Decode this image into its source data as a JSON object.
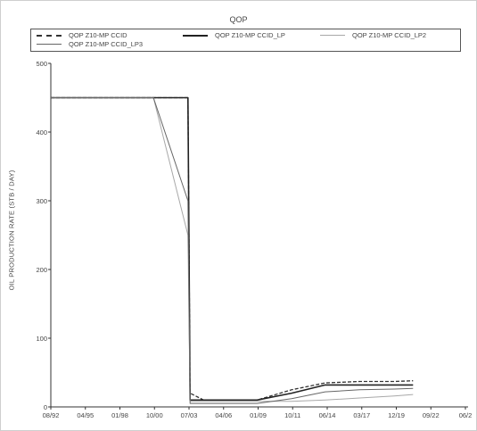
{
  "chart_data": {
    "type": "line",
    "title": "QOP",
    "xlabel": "",
    "ylabel": "OIL PRODUCTION RATE (STB / DAY)",
    "x_tick_labels": [
      "08/92",
      "04/95",
      "01/98",
      "10/00",
      "07/03",
      "04/06",
      "01/09",
      "10/11",
      "06/14",
      "03/17",
      "12/19",
      "09/22",
      "06/2"
    ],
    "y_ticks": [
      0,
      100,
      200,
      300,
      400,
      500
    ],
    "ylim": [
      0,
      500
    ],
    "grid": false,
    "legend_placement": "top",
    "series": [
      {
        "name": "QOP Z10-MP CCID",
        "style": "dashed",
        "color": "#333333",
        "points": [
          [
            "08/92",
            450
          ],
          [
            "07/03",
            450
          ],
          [
            "09/03",
            20
          ],
          [
            "10/04",
            10
          ],
          [
            "01/09",
            10
          ],
          [
            "10/11",
            25
          ],
          [
            "06/14",
            35
          ],
          [
            "03/17",
            37
          ],
          [
            "12/19",
            37
          ],
          [
            "06/21",
            38
          ]
        ]
      },
      {
        "name": "QOP Z10-MP CCID_LP",
        "style": "solid",
        "color": "#222222",
        "points": [
          [
            "08/92",
            450
          ],
          [
            "07/03",
            450
          ],
          [
            "09/03",
            10
          ],
          [
            "10/04",
            10
          ],
          [
            "01/09",
            10
          ],
          [
            "10/11",
            20
          ],
          [
            "06/14",
            32
          ],
          [
            "03/17",
            32
          ],
          [
            "12/19",
            32
          ],
          [
            "06/21",
            32
          ]
        ]
      },
      {
        "name": "QOP Z10-MP CCID_LP2",
        "style": "solid",
        "color": "#a8a8a8",
        "points": [
          [
            "08/92",
            450
          ],
          [
            "10/00",
            450
          ],
          [
            "07/03",
            250
          ],
          [
            "09/03",
            8
          ],
          [
            "01/09",
            8
          ],
          [
            "10/11",
            8
          ],
          [
            "06/14",
            10
          ],
          [
            "03/17",
            13
          ],
          [
            "12/19",
            16
          ],
          [
            "06/21",
            18
          ]
        ]
      },
      {
        "name": "QOP Z10-MP CCID_LP3",
        "style": "solid",
        "color": "#666666",
        "points": [
          [
            "08/92",
            450
          ],
          [
            "10/00",
            450
          ],
          [
            "07/03",
            300
          ],
          [
            "09/03",
            5
          ],
          [
            "01/09",
            5
          ],
          [
            "10/11",
            12
          ],
          [
            "06/14",
            22
          ],
          [
            "03/17",
            25
          ],
          [
            "12/19",
            26
          ],
          [
            "06/21",
            27
          ]
        ]
      }
    ]
  }
}
